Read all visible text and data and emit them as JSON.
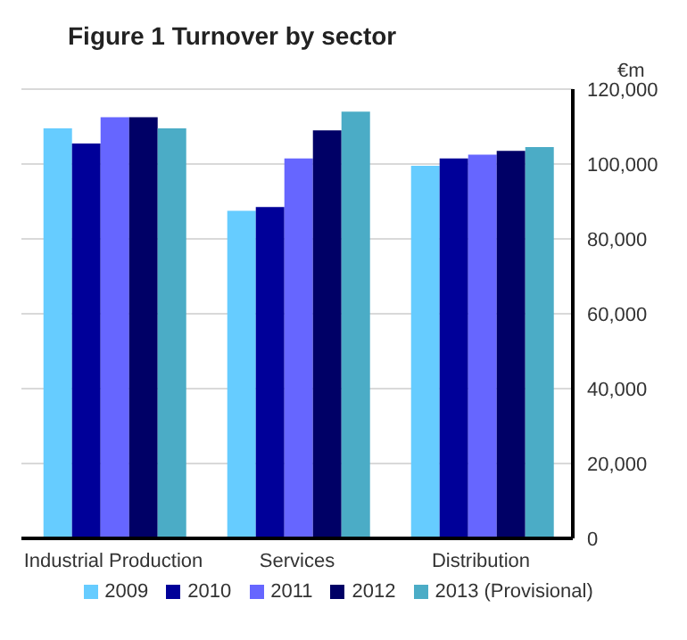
{
  "chart_data": {
    "type": "bar",
    "title": "Figure 1 Turnover by sector",
    "ylabel": "€m",
    "categories": [
      "Industrial Production",
      "Services",
      "Distribution"
    ],
    "series": [
      {
        "name": "2009",
        "color": "#66ccff",
        "values": [
          109500,
          87500,
          99500
        ]
      },
      {
        "name": "2010",
        "color": "#000099",
        "values": [
          105500,
          88500,
          101500
        ]
      },
      {
        "name": "2011",
        "color": "#6666ff",
        "values": [
          112500,
          101500,
          102500
        ]
      },
      {
        "name": "2012",
        "color": "#000066",
        "values": [
          112500,
          109000,
          103500
        ]
      },
      {
        "name": "2013 (Provisional)",
        "color": "#4bacc6",
        "values": [
          109500,
          114000,
          104500
        ]
      }
    ],
    "ylim": [
      0,
      120000
    ],
    "yticks": [
      0,
      {
        "value": 20000,
        "label": "20,000"
      },
      {
        "value": 40000,
        "label": "40,000"
      },
      {
        "value": 60000,
        "label": "60,000"
      },
      {
        "value": 80000,
        "label": "80,000"
      },
      {
        "value": 100000,
        "label": "100,000"
      },
      {
        "value": 120000,
        "label": "120,000"
      }
    ],
    "grid": "y",
    "legend": "bottom"
  }
}
